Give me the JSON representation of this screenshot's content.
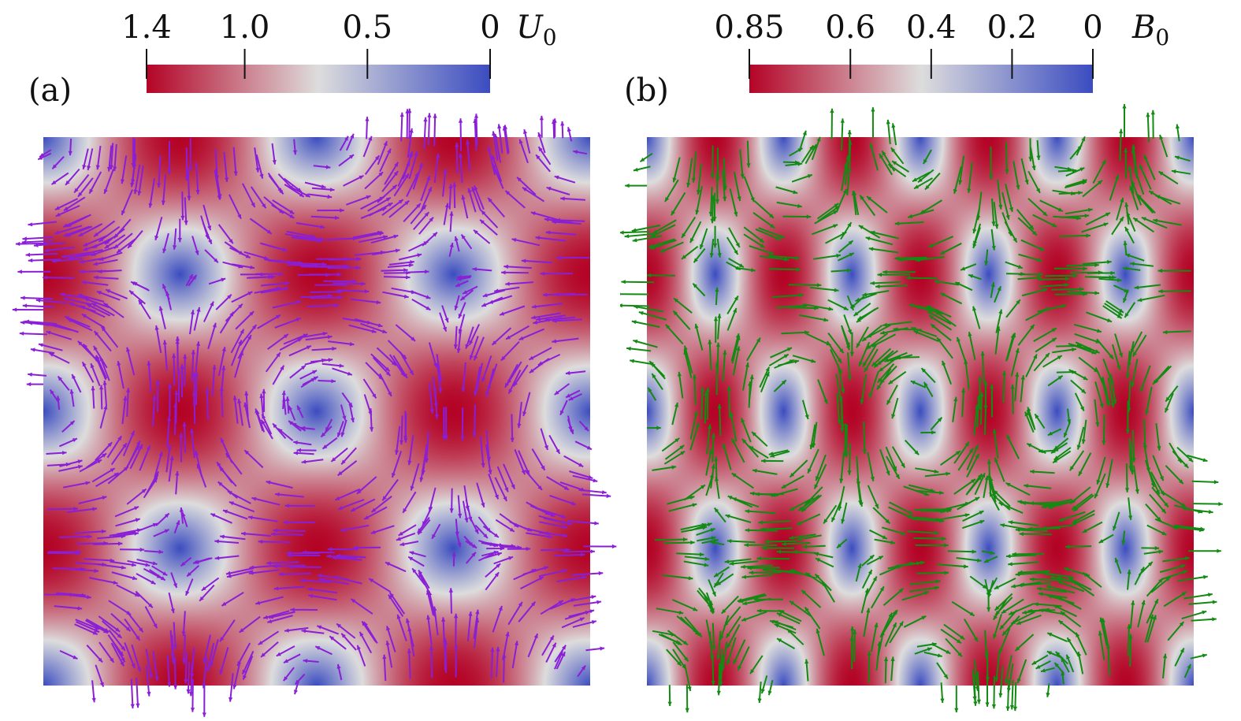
{
  "chart_data": [
    {
      "type": "heatmap",
      "panel_label": "(a)",
      "field": "U",
      "field_sub": "0",
      "colorbar": {
        "ticks": [
          "1.4",
          "1.0",
          "0.5",
          "0"
        ],
        "tick_values": [
          1.4,
          1.0,
          0.5,
          0
        ],
        "range": [
          0,
          1.4
        ],
        "direction": "high-to-low"
      },
      "pattern": {
        "kind": "cellular-flow",
        "kx": 2,
        "ky": 2
      },
      "vectors": {
        "color": "#8a1fd6",
        "kind": "velocity"
      }
    },
    {
      "type": "heatmap",
      "panel_label": "(b)",
      "field": "B",
      "field_sub": "0",
      "colorbar": {
        "ticks": [
          "0.85",
          "0.6",
          "0.4",
          "0.2",
          "0"
        ],
        "tick_values": [
          0.85,
          0.6,
          0.4,
          0.2,
          0
        ],
        "range": [
          0,
          0.85
        ],
        "direction": "high-to-low"
      },
      "pattern": {
        "kind": "cellular-flow",
        "kx": 4,
        "ky": 2
      },
      "vectors": {
        "color": "#138a13",
        "kind": "magnetic"
      }
    }
  ],
  "colormap": {
    "low": "#3b4cc0",
    "mid": "#dddddd",
    "high": "#b40426"
  }
}
